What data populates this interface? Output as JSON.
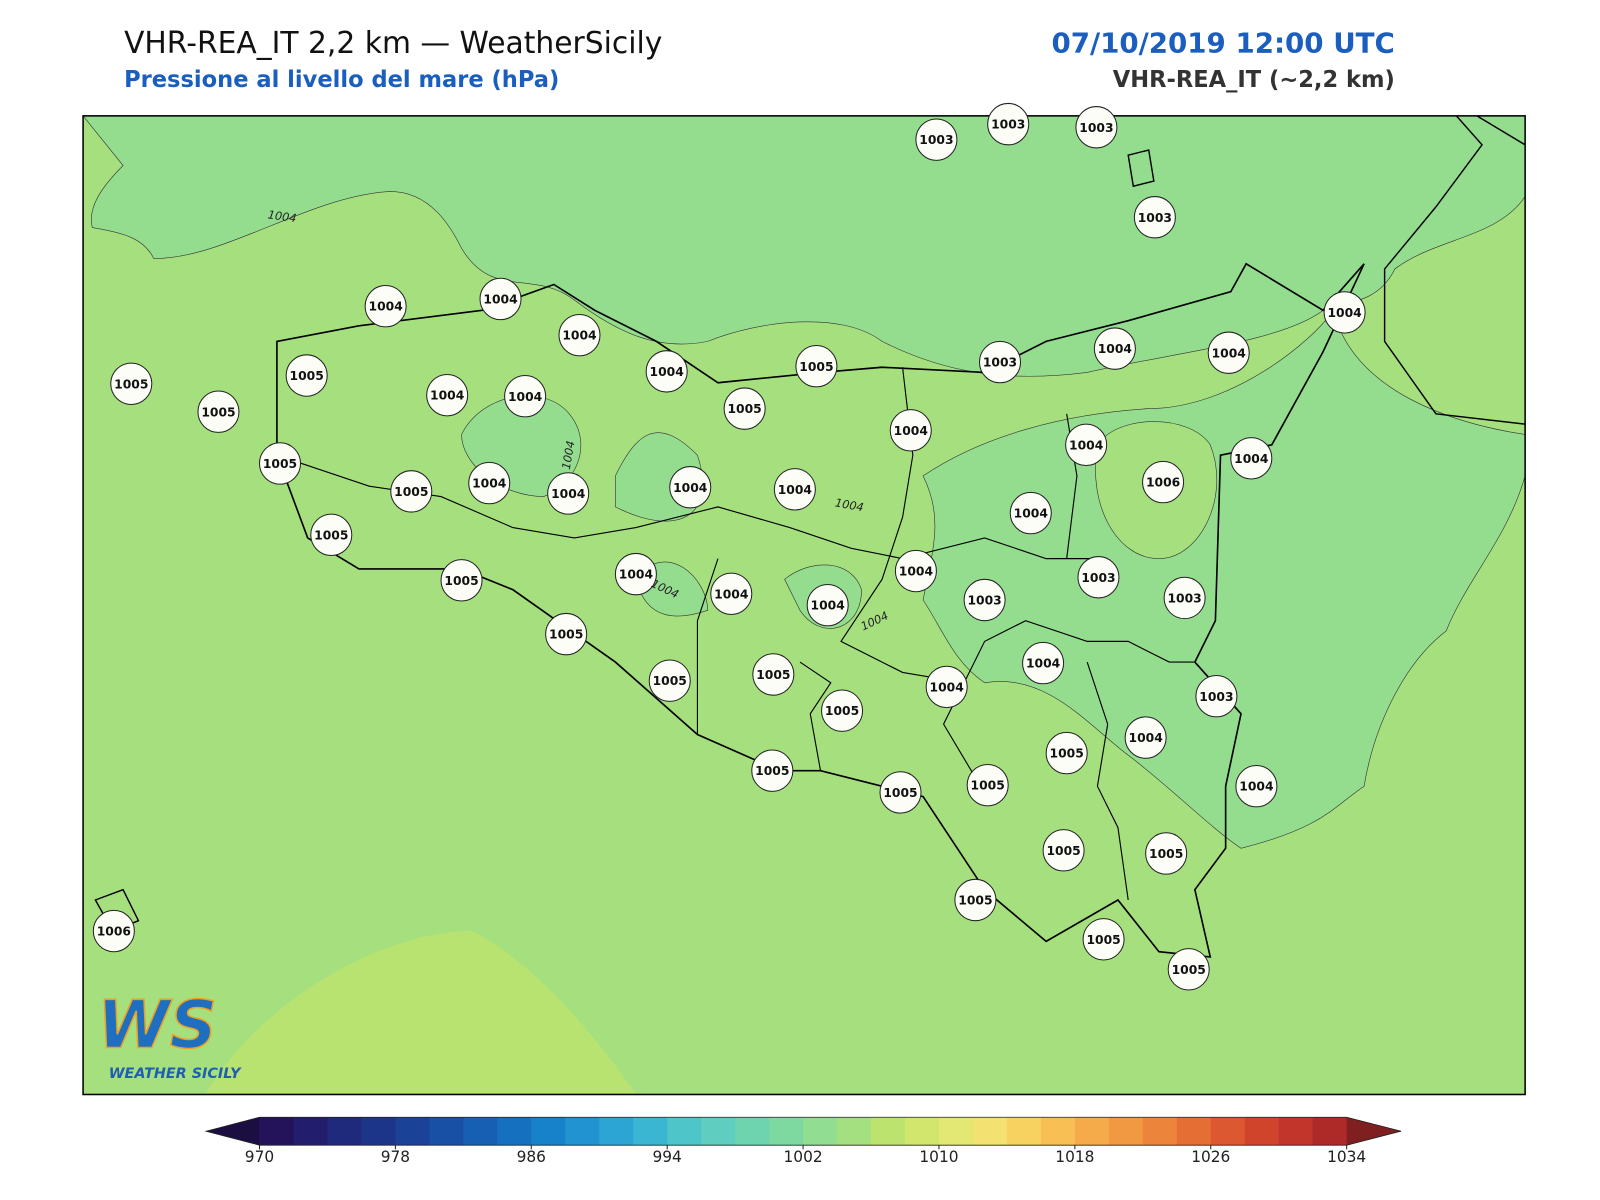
{
  "header": {
    "title": "VHR-REA_IT 2,2 km — WeatherSicily",
    "subtitle": "Pressione al livello del mare (hPa)",
    "datetime": "07/10/2019 12:00 UTC",
    "model": "VHR-REA_IT (~2,2 km)"
  },
  "stations": [
    1003,
    1003,
    1003,
    1003,
    1004,
    1004,
    1004,
    1004,
    1005,
    1003,
    1004,
    1004,
    1004,
    1005,
    1005,
    1005,
    1004,
    1004,
    1005,
    1004,
    1004,
    1004,
    1006,
    1005,
    1005,
    1004,
    1004,
    1004,
    1004,
    1004,
    1005,
    1005,
    1004,
    1004,
    1004,
    1004,
    1003,
    1003,
    1003,
    1005,
    1005,
    1005,
    1005,
    1004,
    1004,
    1003,
    1005,
    1004,
    1005,
    1005,
    1005,
    1004,
    1005,
    1005,
    1005,
    1005,
    1005,
    1006
  ],
  "contour_labels": [
    1004,
    1004,
    1004,
    1004,
    1004
  ],
  "colorbar": {
    "lim": [
      970,
      1034
    ],
    "ticks": [
      970,
      978,
      986,
      994,
      1002,
      1010,
      1018,
      1026,
      1034
    ],
    "colors": [
      "#24135a",
      "#231d6e",
      "#1f2a7d",
      "#1c3589",
      "#1a4296",
      "#1850a5",
      "#165fb3",
      "#1570c0",
      "#1781c9",
      "#2093d0",
      "#2ca5d4",
      "#3bb6d2",
      "#4ec5c9",
      "#5fcdbf",
      "#6ed4b0",
      "#7ed9a1",
      "#91dd91",
      "#a5e080",
      "#bde36f",
      "#d2e56c",
      "#e3e773",
      "#f3e271",
      "#f8d261",
      "#f7bf54",
      "#f5ab4a",
      "#f19842",
      "#ec843b",
      "#e56e35",
      "#dc5830",
      "#d0442c",
      "#c1352a",
      "#ae2a28"
    ],
    "under": "#1a0f40",
    "over": "#7f1f1f"
  },
  "logo": {
    "mark": "WS",
    "caption": "WEATHER SICILY"
  }
}
